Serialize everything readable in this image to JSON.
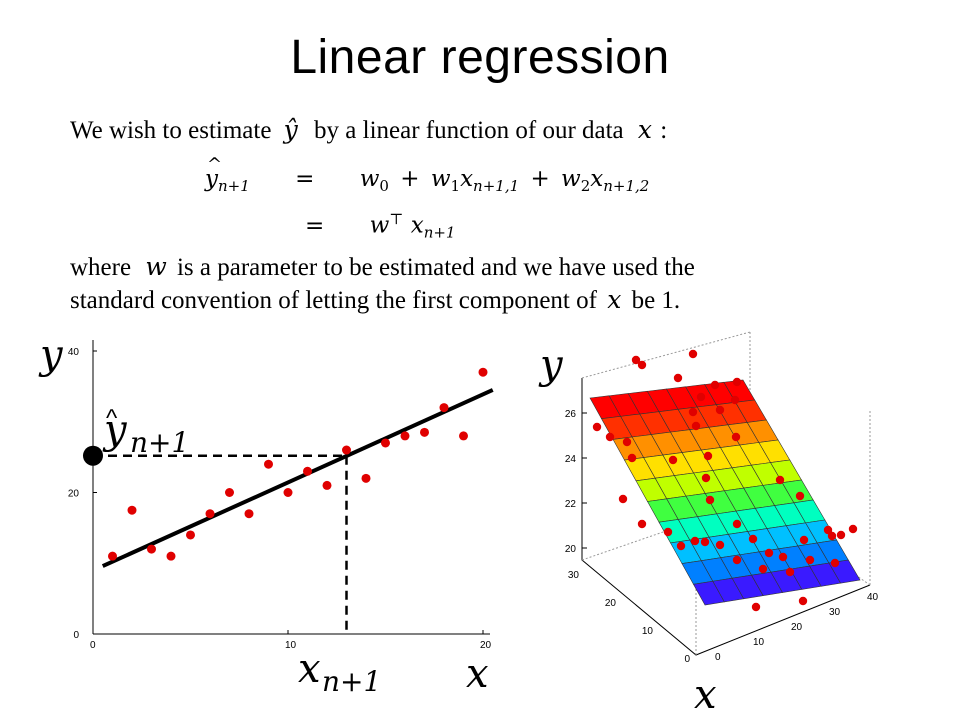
{
  "title": "Linear regression",
  "intro": {
    "before": "We wish to estimate",
    "middle": "by a linear function of our data",
    "after": ":"
  },
  "eq1": {
    "lhs_var": "y",
    "lhs_hat": "^",
    "lhs_sub": "n+1",
    "equals": "=",
    "w0": "w",
    "w0_sub": "0",
    "plus": "+",
    "w1": "w",
    "w1_sub": "1",
    "x1": "x",
    "x1_sub": "n+1,1",
    "w2": "w",
    "w2_sub": "2",
    "x2": "x",
    "x2_sub": "n+1,2"
  },
  "eq2": {
    "equals": "=",
    "w": "w",
    "sup": "⊤",
    "x": "x",
    "x_sub": "n+1"
  },
  "para": {
    "line1_a": "where",
    "line1_var": "w",
    "line1_b": "is a parameter to be estimated and we have used the",
    "line2_a": "standard convention of letting the first component of",
    "line2_var": "x",
    "line2_b": "be 1."
  },
  "vars": {
    "y_hat": "ŷ",
    "x": "x"
  },
  "colors": {
    "point": "#e00000",
    "line": "#000000"
  },
  "chart_data": [
    {
      "type": "scatter",
      "xlim": [
        0,
        20
      ],
      "ylim": [
        0,
        40
      ],
      "x_ticks": [
        "0",
        "10",
        "20"
      ],
      "y_ticks": [
        "0",
        "20",
        "40"
      ],
      "ylabel": "y",
      "xlabel": "x",
      "annotation_y": "y",
      "annotation_y_sub": "n+1",
      "annotation_x": "x",
      "annotation_x_sub": "n+1",
      "x_query": 13,
      "y_query": 25.2,
      "fit_line": {
        "x": [
          0.5,
          20.5
        ],
        "y": [
          9.6,
          34.5
        ]
      },
      "points": [
        {
          "x": 1,
          "y": 11
        },
        {
          "x": 2,
          "y": 17.5
        },
        {
          "x": 3,
          "y": 12
        },
        {
          "x": 4,
          "y": 11
        },
        {
          "x": 5,
          "y": 14
        },
        {
          "x": 6,
          "y": 17
        },
        {
          "x": 7,
          "y": 20
        },
        {
          "x": 8,
          "y": 17
        },
        {
          "x": 9,
          "y": 24
        },
        {
          "x": 10,
          "y": 20
        },
        {
          "x": 11,
          "y": 23
        },
        {
          "x": 12,
          "y": 21
        },
        {
          "x": 13,
          "y": 26
        },
        {
          "x": 14,
          "y": 22
        },
        {
          "x": 15,
          "y": 27
        },
        {
          "x": 16,
          "y": 28
        },
        {
          "x": 17,
          "y": 28.5
        },
        {
          "x": 18,
          "y": 32
        },
        {
          "x": 19,
          "y": 28
        },
        {
          "x": 20,
          "y": 37
        }
      ]
    },
    {
      "type": "surface",
      "ylabel": "y",
      "xlabel": "x",
      "z_ticks": [
        "20",
        "22",
        "24",
        "26"
      ],
      "x_ticks": [
        "0",
        "10",
        "20",
        "30",
        "40"
      ],
      "depth_ticks": [
        "0",
        "10",
        "20",
        "30"
      ],
      "surface_colors": [
        "#3a1aff",
        "#0080ff",
        "#00c0ff",
        "#00ffc0",
        "#40ff40",
        "#c0ff00",
        "#ffe000",
        "#ff9000",
        "#ff3000",
        "#ff0000"
      ]
    }
  ]
}
